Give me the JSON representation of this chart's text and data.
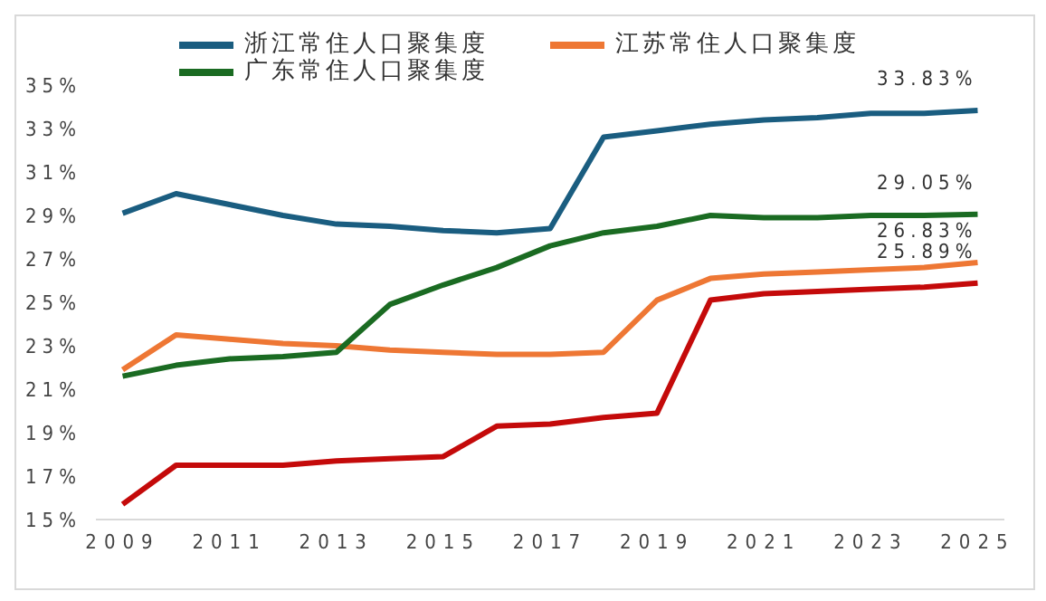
{
  "chart_data": {
    "type": "line",
    "legend": "top",
    "grid": false,
    "marker": "none",
    "line_style": "solid",
    "x": [
      2009,
      2010,
      2011,
      2012,
      2013,
      2014,
      2015,
      2016,
      2017,
      2018,
      2019,
      2020,
      2021,
      2022,
      2023,
      2024,
      2025
    ],
    "xlim": [
      2008.5,
      2025.5
    ],
    "xticks": [
      2009,
      2011,
      2013,
      2015,
      2017,
      2019,
      2021,
      2023,
      2025
    ],
    "ylim": [
      15,
      35
    ],
    "yticks": [
      {
        "value": 15,
        "label": "15%"
      },
      {
        "value": 17,
        "label": "17%"
      },
      {
        "value": 19,
        "label": "19%"
      },
      {
        "value": 21,
        "label": "21%"
      },
      {
        "value": 23,
        "label": "23%"
      },
      {
        "value": 25,
        "label": "25%"
      },
      {
        "value": 27,
        "label": "27%"
      },
      {
        "value": 29,
        "label": "29%"
      },
      {
        "value": 31,
        "label": "31%"
      },
      {
        "value": 33,
        "label": "33%"
      },
      {
        "value": 35,
        "label": "35%"
      }
    ],
    "series": [
      {
        "name": "浙江常住人口聚集度",
        "color": "#1a5d80",
        "values": [
          29.1,
          30.0,
          29.5,
          29.0,
          28.6,
          28.5,
          28.3,
          28.2,
          28.4,
          32.6,
          32.9,
          33.2,
          33.4,
          33.5,
          33.7,
          33.7,
          33.83
        ],
        "value_labels": [
          null,
          null,
          null,
          null,
          null,
          null,
          null,
          null,
          null,
          null,
          null,
          null,
          null,
          null,
          null,
          null,
          "33.83%"
        ]
      },
      {
        "name": "江苏常住人口聚集度",
        "color": "#ee7734",
        "values": [
          21.9,
          23.5,
          23.3,
          23.1,
          23.0,
          22.8,
          22.7,
          22.6,
          22.6,
          22.7,
          25.1,
          26.1,
          26.3,
          26.4,
          26.5,
          26.6,
          26.83
        ],
        "value_labels": [
          null,
          null,
          null,
          null,
          null,
          null,
          null,
          null,
          null,
          null,
          null,
          null,
          null,
          null,
          null,
          null,
          "26.83%"
        ]
      },
      {
        "name": "广东常住人口聚集度",
        "color": "#1a6b22",
        "values": [
          21.6,
          22.1,
          22.4,
          22.5,
          22.7,
          24.9,
          25.8,
          26.6,
          27.6,
          28.2,
          28.5,
          29.0,
          28.9,
          28.9,
          29.0,
          29.0,
          29.05
        ],
        "value_labels": [
          null,
          null,
          null,
          null,
          null,
          null,
          null,
          null,
          null,
          null,
          null,
          null,
          null,
          null,
          null,
          null,
          "29.05%"
        ]
      },
      {
        "color": "#c40a0a",
        "values": [
          15.7,
          17.5,
          17.5,
          17.5,
          17.7,
          17.8,
          17.9,
          19.3,
          19.4,
          19.7,
          19.9,
          25.1,
          25.4,
          25.5,
          25.6,
          25.7,
          25.89
        ],
        "value_labels": [
          null,
          null,
          null,
          null,
          null,
          null,
          null,
          null,
          null,
          null,
          null,
          null,
          null,
          null,
          null,
          null,
          "25.89%"
        ]
      }
    ]
  }
}
